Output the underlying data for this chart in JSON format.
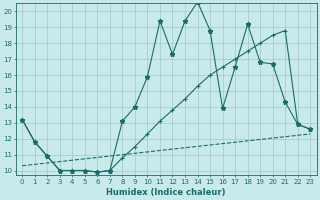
{
  "background_color": "#c8eaea",
  "grid_color": "#a0c8c8",
  "line_color": "#1a6b6b",
  "xlabel": "Humidex (Indice chaleur)",
  "xlim": [
    -0.5,
    23.5
  ],
  "ylim": [
    9.7,
    20.5
  ],
  "xticks": [
    0,
    1,
    2,
    3,
    4,
    5,
    6,
    7,
    8,
    9,
    10,
    11,
    12,
    13,
    14,
    15,
    16,
    17,
    18,
    19,
    20,
    21,
    22,
    23
  ],
  "yticks": [
    10,
    11,
    12,
    13,
    14,
    15,
    16,
    17,
    18,
    19,
    20
  ],
  "series1_x": [
    0,
    1,
    2,
    3,
    4,
    5,
    6,
    7,
    8,
    9,
    10,
    11,
    12,
    13,
    14,
    15,
    16,
    17,
    18,
    19,
    20,
    21,
    22,
    23
  ],
  "series1_y": [
    13.2,
    11.8,
    10.9,
    10.0,
    10.0,
    10.0,
    9.9,
    10.0,
    13.1,
    14.0,
    15.9,
    19.4,
    17.3,
    19.4,
    20.6,
    18.8,
    13.9,
    16.5,
    19.2,
    16.8,
    16.7,
    14.3,
    12.9,
    12.6
  ],
  "series2_x": [
    0,
    1,
    2,
    3,
    4,
    5,
    6,
    7,
    8,
    9,
    10,
    11,
    12,
    13,
    14,
    15,
    16,
    17,
    18,
    19,
    20,
    21,
    22,
    23
  ],
  "series2_y": [
    13.2,
    11.8,
    10.9,
    10.0,
    10.0,
    10.0,
    9.9,
    10.0,
    10.8,
    11.5,
    12.3,
    13.1,
    13.8,
    14.5,
    15.3,
    16.0,
    16.5,
    17.0,
    17.5,
    18.0,
    18.5,
    18.8,
    12.9,
    12.6
  ],
  "series3_x": [
    0,
    23
  ],
  "series3_y": [
    10.3,
    12.3
  ]
}
